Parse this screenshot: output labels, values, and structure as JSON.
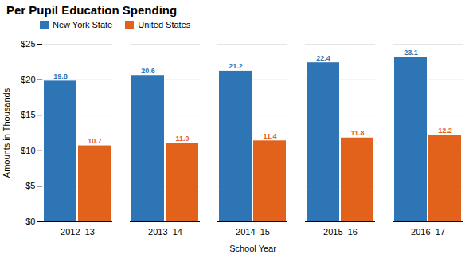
{
  "chart_data": {
    "type": "bar",
    "title": "Per Pupil Education Spending",
    "xlabel": "School Year",
    "ylabel": "Amounts in Thousands",
    "categories": [
      "2012–13",
      "2013–14",
      "2014–15",
      "2015–16",
      "2016–17"
    ],
    "series": [
      {
        "name": "New York State",
        "color": "#2E75B6",
        "values": [
          19.8,
          20.6,
          21.2,
          22.4,
          23.1
        ],
        "value_labels": [
          "19.8",
          "20.6",
          "21.2",
          "22.4",
          "23.1"
        ]
      },
      {
        "name": "United States",
        "color": "#E2611B",
        "values": [
          10.7,
          11.0,
          11.4,
          11.8,
          12.2
        ],
        "value_labels": [
          "10.7",
          "11.0",
          "11.4",
          "11.8",
          "12.2"
        ]
      }
    ],
    "ylim": [
      0,
      25
    ],
    "yticks": [
      {
        "value": 0,
        "label": "$0"
      },
      {
        "value": 5,
        "label": "$5"
      },
      {
        "value": 10,
        "label": "$10"
      },
      {
        "value": 15,
        "label": "$15"
      },
      {
        "value": 20,
        "label": "$20"
      },
      {
        "value": 25,
        "label": "$25"
      }
    ],
    "grid": true,
    "legend": "upper left",
    "data_labels": true
  }
}
